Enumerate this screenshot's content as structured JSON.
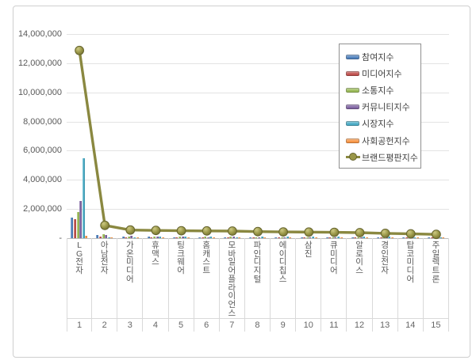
{
  "chart_data": {
    "type": "bar",
    "subtype": "clustered-bars-with-line-overlay",
    "title": "",
    "xlabel": "",
    "ylabel": "",
    "ylim": [
      0,
      14000000
    ],
    "y_ticks": [
      0,
      2000000,
      4000000,
      6000000,
      8000000,
      10000000,
      12000000,
      14000000
    ],
    "zero_tick_label": "-",
    "grid": true,
    "legend_position": "top-right",
    "categories": [
      {
        "rank": "1",
        "name": "LG전자"
      },
      {
        "rank": "2",
        "name": "아남전자"
      },
      {
        "rank": "3",
        "name": "가온미디어"
      },
      {
        "rank": "4",
        "name": "휴맥스"
      },
      {
        "rank": "5",
        "name": "팅크웨어"
      },
      {
        "rank": "6",
        "name": "홈캐스트"
      },
      {
        "rank": "7",
        "name": "모바일어플라이언스"
      },
      {
        "rank": "8",
        "name": "파인디지털"
      },
      {
        "rank": "9",
        "name": "에이디칩스"
      },
      {
        "rank": "10",
        "name": "삼진"
      },
      {
        "rank": "11",
        "name": "큐미디어"
      },
      {
        "rank": "12",
        "name": "알로이스"
      },
      {
        "rank": "13",
        "name": "경인전자"
      },
      {
        "rank": "14",
        "name": "탑코미디어"
      },
      {
        "rank": "15",
        "name": "주일렉트론"
      }
    ],
    "series": [
      {
        "key": "participation",
        "name": "참여지수",
        "color": "#4F81BD",
        "values": [
          1400000,
          230000,
          100000,
          90000,
          80000,
          80000,
          70000,
          70000,
          60000,
          60000,
          60000,
          50000,
          50000,
          40000,
          40000
        ]
      },
      {
        "key": "media",
        "name": "미디어지수",
        "color": "#C0504D",
        "values": [
          1300000,
          120000,
          60000,
          60000,
          60000,
          50000,
          50000,
          50000,
          40000,
          40000,
          40000,
          40000,
          30000,
          30000,
          30000
        ]
      },
      {
        "key": "communication",
        "name": "소통지수",
        "color": "#9BBB59",
        "values": [
          1800000,
          260000,
          110000,
          100000,
          90000,
          90000,
          120000,
          80000,
          70000,
          70000,
          60000,
          60000,
          50000,
          50000,
          40000
        ]
      },
      {
        "key": "community",
        "name": "커뮤니티지수",
        "color": "#8064A2",
        "values": [
          2550000,
          210000,
          180000,
          90000,
          90000,
          80000,
          100000,
          70000,
          70000,
          60000,
          60000,
          50000,
          50000,
          40000,
          40000
        ]
      },
      {
        "key": "market",
        "name": "시장지수",
        "color": "#4BACC6",
        "values": [
          5480000,
          60000,
          50000,
          120000,
          120000,
          110000,
          80000,
          110000,
          120000,
          120000,
          110000,
          110000,
          90000,
          80000,
          60000
        ]
      },
      {
        "key": "social",
        "name": "사회공헌지수",
        "color": "#F79646",
        "values": [
          150000,
          30000,
          30000,
          30000,
          30000,
          30000,
          30000,
          30000,
          30000,
          30000,
          30000,
          30000,
          30000,
          30000,
          30000
        ]
      }
    ],
    "line_series": {
      "key": "brand-reputation-index",
      "name": "브랜드평판지수",
      "color": "#8A8840",
      "marker_fill": "#9A9748",
      "values": [
        12870000,
        880000,
        560000,
        530000,
        510000,
        500000,
        490000,
        450000,
        430000,
        420000,
        400000,
        380000,
        330000,
        300000,
        260000
      ]
    }
  }
}
